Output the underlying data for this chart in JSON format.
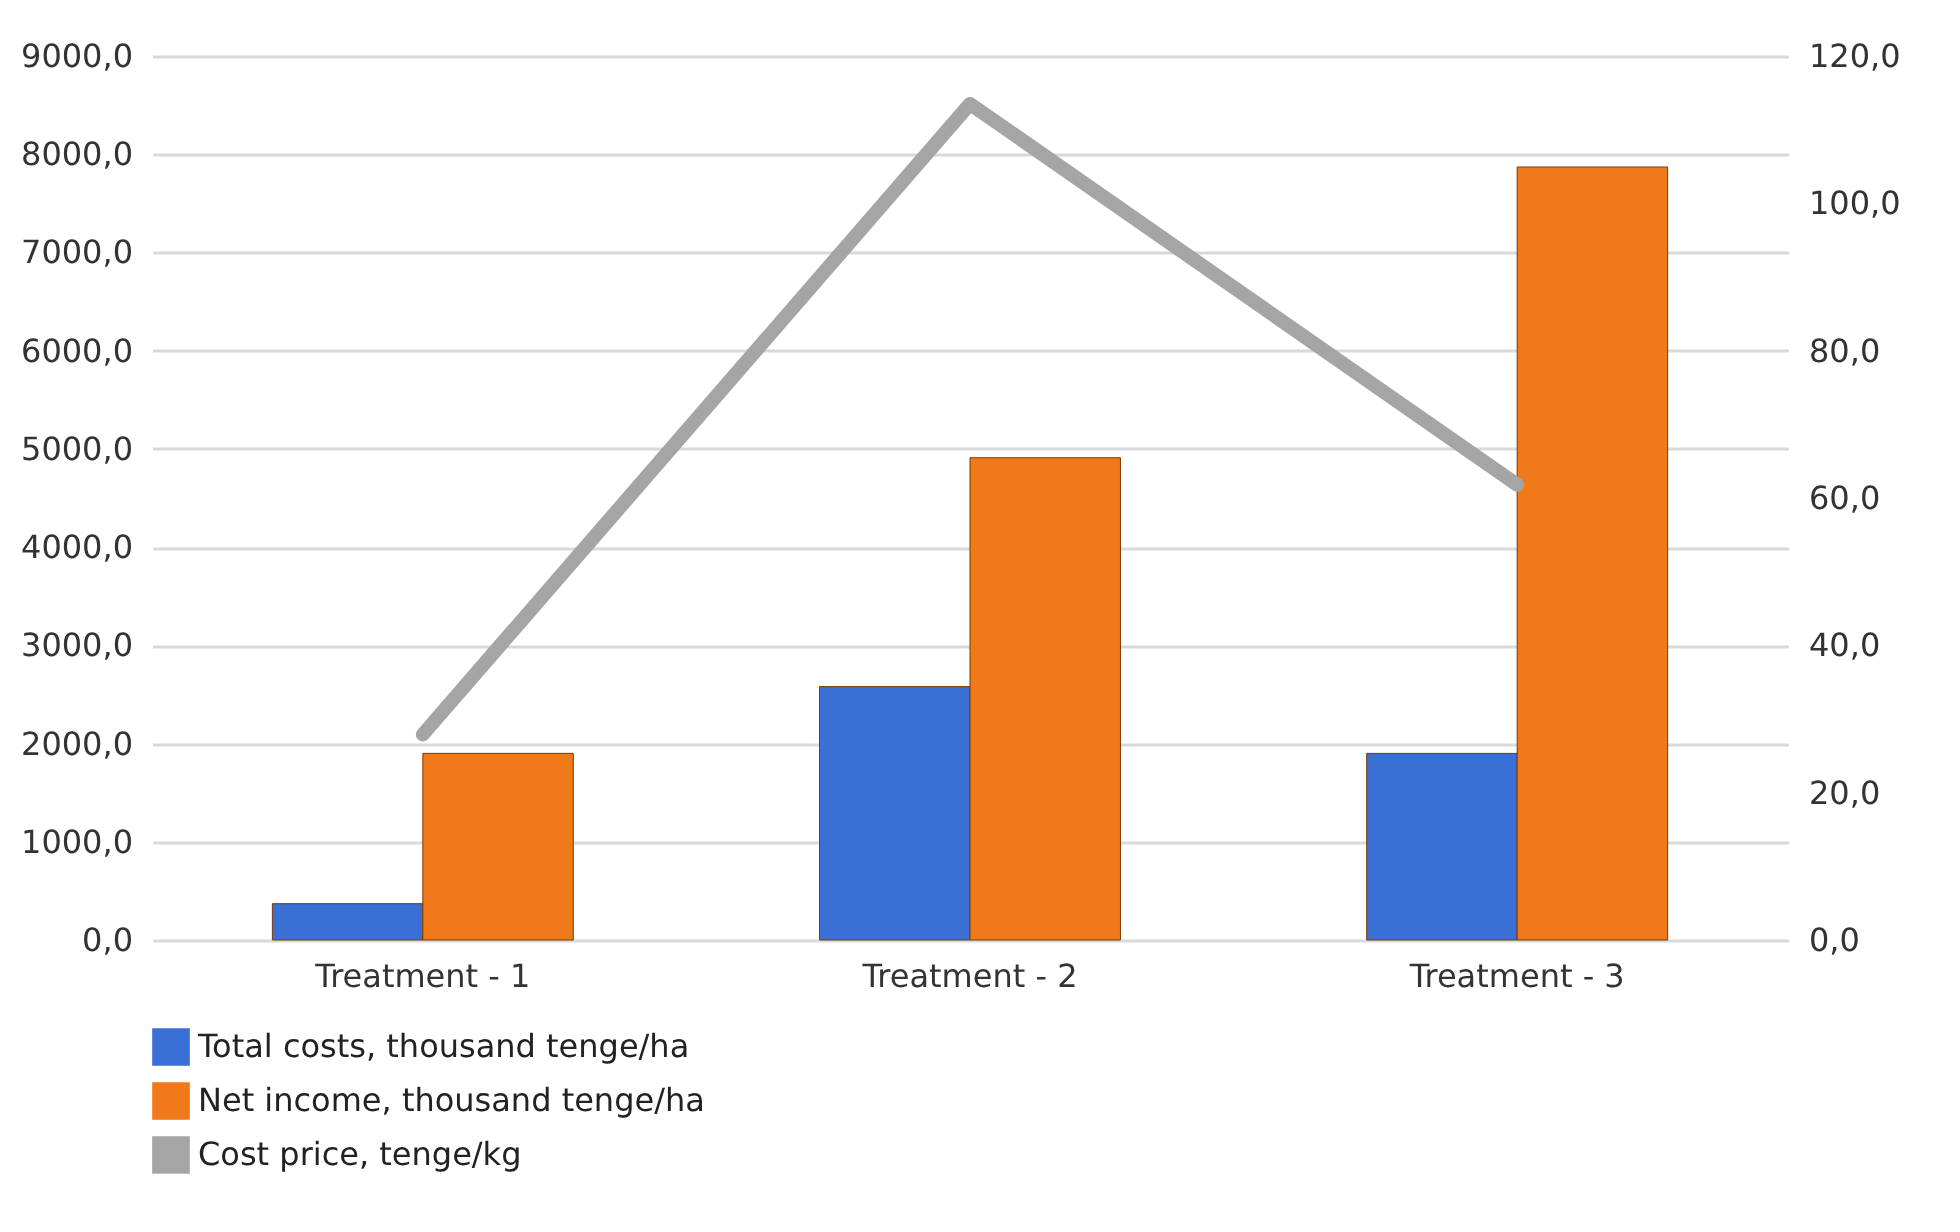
{
  "chart_data": {
    "type": "bar",
    "categories": [
      "Treatment - 1",
      "Treatment - 2",
      "Treatment - 3"
    ],
    "series": [
      {
        "name": "Total costs, thousand tenge/ha",
        "color": "#3a6fd6",
        "values": [
          370,
          2580,
          1900
        ]
      },
      {
        "name": "Net income, thousand tenge/ha",
        "color": "#f07a1a",
        "values": [
          1900,
          4910,
          7870
        ]
      },
      {
        "name": "Cost price, tenge/kg",
        "color": "#a5a5a5",
        "type": "line",
        "axis": "y2",
        "values": [
          27.9,
          113.5,
          61.8
        ]
      }
    ],
    "ylim": [
      0,
      9000
    ],
    "yticks": [
      {
        "value": 0,
        "label": "0,0"
      },
      {
        "value": 1000,
        "label": "1000,0"
      },
      {
        "value": 2000,
        "label": "2000,0"
      },
      {
        "value": 3000,
        "label": "3000,0"
      },
      {
        "value": 4000,
        "label": "4000,0"
      },
      {
        "value": 5000,
        "label": "5000,0"
      },
      {
        "value": 6000,
        "label": "6000,0"
      },
      {
        "value": 7000,
        "label": "7000,0"
      },
      {
        "value": 8000,
        "label": "8000,0"
      },
      {
        "value": 9000,
        "label": "9000,0"
      }
    ],
    "y2lim": [
      0,
      120
    ],
    "y2ticks": [
      {
        "value": 0,
        "label": "0,0"
      },
      {
        "value": 20,
        "label": "20,0"
      },
      {
        "value": 40,
        "label": "40,0"
      },
      {
        "value": 60,
        "label": "60,0"
      },
      {
        "value": 80,
        "label": "80,0"
      },
      {
        "value": 100,
        "label": "100,0"
      },
      {
        "value": 120,
        "label": "120,0"
      }
    ],
    "grid": "y",
    "legend": "bottom",
    "marker": "none",
    "line_style": "solid"
  }
}
